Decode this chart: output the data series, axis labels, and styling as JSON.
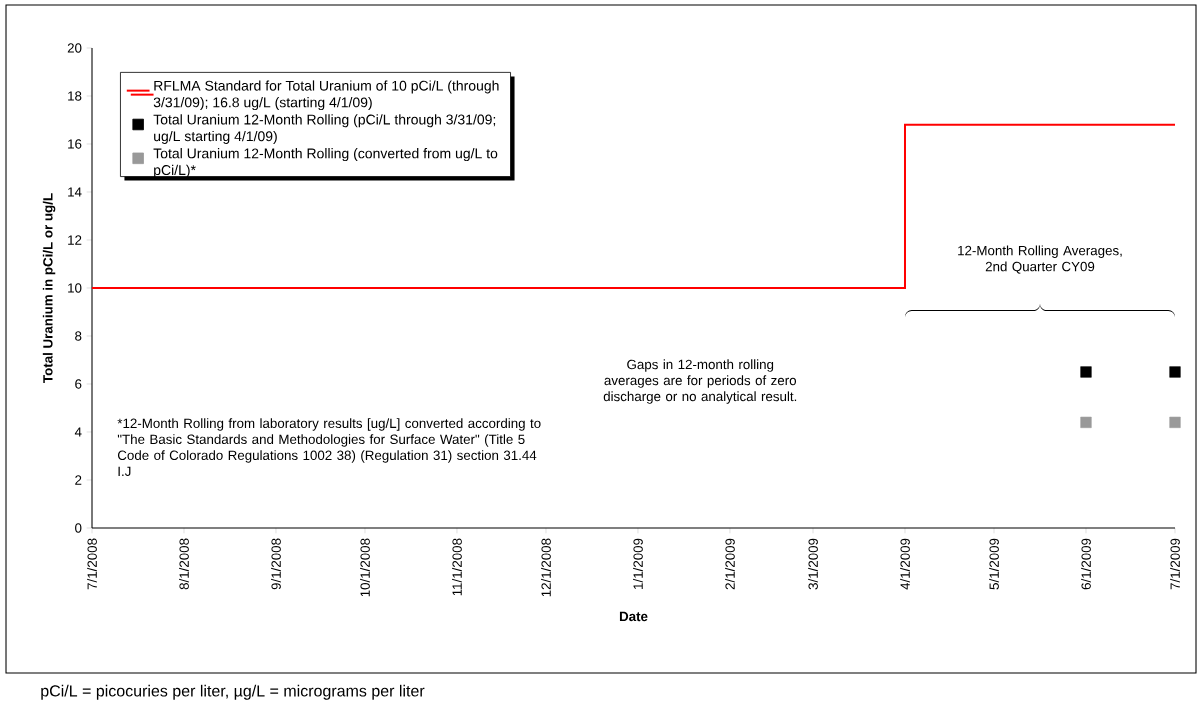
{
  "chart_data": {
    "type": "scatter",
    "xlabel": "Date",
    "ylabel": "Total Uranium in pCi/L or ug/L",
    "xlim": [
      "2008-07-01",
      "2009-07-01"
    ],
    "ylim": [
      0,
      20
    ],
    "xticks": [
      {
        "value": "2008-07-01",
        "label": "7/1/2008"
      },
      {
        "value": "2008-08-01",
        "label": "8/1/2008"
      },
      {
        "value": "2008-09-01",
        "label": "9/1/2008"
      },
      {
        "value": "2008-10-01",
        "label": "10/1/2008"
      },
      {
        "value": "2008-11-01",
        "label": "11/1/2008"
      },
      {
        "value": "2008-12-01",
        "label": "12/1/2008"
      },
      {
        "value": "2009-01-01",
        "label": "1/1/2009"
      },
      {
        "value": "2009-02-01",
        "label": "2/1/2009"
      },
      {
        "value": "2009-03-01",
        "label": "3/1/2009"
      },
      {
        "value": "2009-04-01",
        "label": "4/1/2009"
      },
      {
        "value": "2009-05-01",
        "label": "5/1/2009"
      },
      {
        "value": "2009-06-01",
        "label": "6/1/2009"
      },
      {
        "value": "2009-07-01",
        "label": "7/1/2009"
      }
    ],
    "yticks": [
      0,
      2,
      4,
      6,
      8,
      10,
      12,
      14,
      16,
      18,
      20
    ],
    "legend": "top left",
    "series": [
      {
        "name": "RFLMA Standard for Total Uranium of 10 pCi/L (through 3/31/09); 16.8 ug/L (starting 4/1/09)",
        "type": "step",
        "marker": "none",
        "color": "#ff0000",
        "x": [
          "2008-07-01",
          "2009-04-01",
          "2009-07-01"
        ],
        "values": [
          10,
          16.8,
          16.8
        ]
      },
      {
        "name": "Total Uranium 12-Month Rolling (pCi/L through 3/31/09; ug/L starting 4/1/09)",
        "marker": "square",
        "color": "#000000",
        "x": [
          "2009-06-01",
          "2009-07-01"
        ],
        "values": [
          6.5,
          6.5
        ]
      },
      {
        "name": "Total Uranium 12-Month Rolling (converted from ug/L to pCi/L)*",
        "marker": "square",
        "color": "#999999",
        "x": [
          "2009-06-01",
          "2009-07-01"
        ],
        "values": [
          4.4,
          4.4
        ]
      }
    ],
    "annotations": [
      "12-Month Rolling Averages, 2nd Quarter CY09",
      "Gaps in 12-month rolling averages are for periods of zero discharge or no analytical result.",
      "*12-Month Rolling from laboratory results [ug/L] converted according to \"The Basic Standards and Methodologies for Surface Water\" (Title 5 Code of Colorado Regulations 1002 38) (Regulation 31) section 31.44 I.J",
      "pCi/L = picocuries per liter, µg/L = micrograms per liter"
    ]
  }
}
